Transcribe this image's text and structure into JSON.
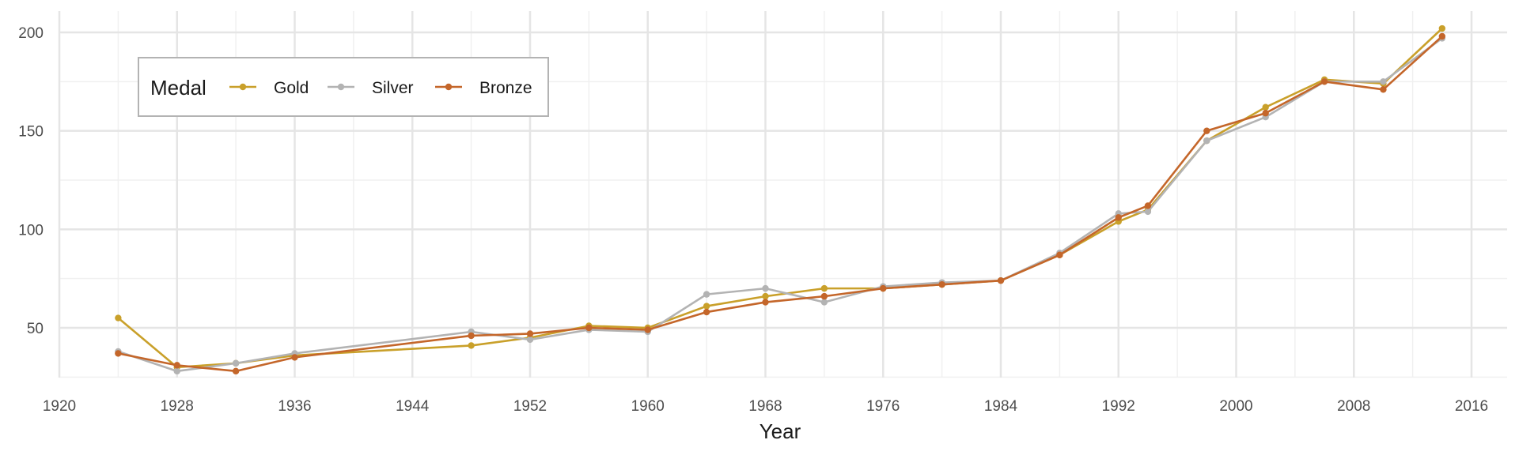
{
  "chart_data": {
    "type": "line",
    "title": "",
    "xlabel": "Year",
    "ylabel": "",
    "xlim": [
      1920,
      2018
    ],
    "ylim": [
      22,
      210
    ],
    "x_ticks": [
      1920,
      1928,
      1936,
      1944,
      1952,
      1960,
      1968,
      1976,
      1984,
      1992,
      2000,
      2008,
      2016
    ],
    "y_ticks": [
      50,
      100,
      150,
      200
    ],
    "grid": true,
    "legend": {
      "title": "Medal",
      "placement": "top-left"
    },
    "series": [
      {
        "name": "Gold",
        "color": "#C9A02A",
        "x": [
          1924,
          1928,
          1932,
          1936,
          1948,
          1952,
          1956,
          1960,
          1964,
          1968,
          1972,
          1976,
          1980,
          1984,
          1988,
          1992,
          1994,
          1998,
          2002,
          2006,
          2010,
          2014
        ],
        "y": [
          55,
          30,
          32,
          36,
          41,
          45,
          51,
          50,
          61,
          66,
          70,
          70,
          72,
          74,
          87,
          104,
          110,
          145,
          162,
          176,
          174,
          202
        ]
      },
      {
        "name": "Silver",
        "color": "#B3B3B3",
        "x": [
          1924,
          1928,
          1932,
          1936,
          1948,
          1952,
          1956,
          1960,
          1964,
          1968,
          1972,
          1976,
          1980,
          1984,
          1988,
          1992,
          1994,
          1998,
          2002,
          2006,
          2010,
          2014
        ],
        "y": [
          38,
          28,
          32,
          37,
          48,
          44,
          49,
          48,
          67,
          70,
          63,
          71,
          73,
          74,
          88,
          108,
          109,
          145,
          157,
          175,
          175,
          197
        ]
      },
      {
        "name": "Bronze",
        "color": "#C4662A",
        "x": [
          1924,
          1928,
          1932,
          1936,
          1948,
          1952,
          1956,
          1960,
          1964,
          1968,
          1972,
          1976,
          1980,
          1984,
          1988,
          1992,
          1994,
          1998,
          2002,
          2006,
          2010,
          2014
        ],
        "y": [
          37,
          31,
          28,
          35,
          46,
          47,
          50,
          49,
          58,
          63,
          66,
          70,
          72,
          74,
          87,
          106,
          112,
          150,
          159,
          175,
          171,
          198
        ]
      }
    ]
  }
}
